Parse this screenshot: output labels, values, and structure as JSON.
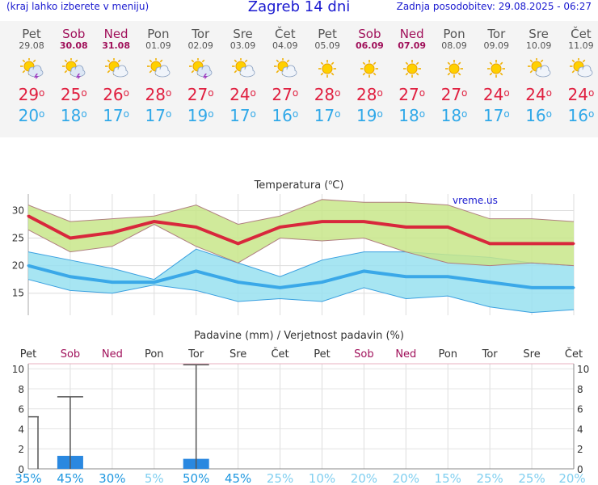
{
  "header": {
    "left": "(kraj lahko izberete v meniju)",
    "title": "Zagreb 14 dni",
    "right": "Zadnja posodobitev: 29.08.2025 - 06:27"
  },
  "colors": {
    "max": "#d8283c",
    "min": "#3aa8e8",
    "max_band": "#c8e68a",
    "min_band": "#98e0f0",
    "weekend": "#a0105a",
    "bar": "#2a88e0",
    "prob": "#38b8e8"
  },
  "days": [
    {
      "name": "Pet",
      "date": "29.08",
      "weekend": false,
      "icon": "sun-cloud-storm-icon",
      "max": "29",
      "min": "20"
    },
    {
      "name": "Sob",
      "date": "30.08",
      "weekend": true,
      "icon": "sun-cloud-storm-icon",
      "max": "25",
      "min": "18"
    },
    {
      "name": "Ned",
      "date": "31.08",
      "weekend": true,
      "icon": "sun-cloud-icon",
      "max": "26",
      "min": "17"
    },
    {
      "name": "Pon",
      "date": "01.09",
      "weekend": false,
      "icon": "sun-cloud-icon",
      "max": "28",
      "min": "17"
    },
    {
      "name": "Tor",
      "date": "02.09",
      "weekend": false,
      "icon": "sun-cloud-storm-icon",
      "max": "27",
      "min": "19"
    },
    {
      "name": "Sre",
      "date": "03.09",
      "weekend": false,
      "icon": "sun-cloud-icon",
      "max": "24",
      "min": "17"
    },
    {
      "name": "Čet",
      "date": "04.09",
      "weekend": false,
      "icon": "sun-cloud-icon",
      "max": "27",
      "min": "16"
    },
    {
      "name": "Pet",
      "date": "05.09",
      "weekend": false,
      "icon": "sun-icon",
      "max": "28",
      "min": "17"
    },
    {
      "name": "Sob",
      "date": "06.09",
      "weekend": true,
      "icon": "sun-icon",
      "max": "28",
      "min": "19"
    },
    {
      "name": "Ned",
      "date": "07.09",
      "weekend": true,
      "icon": "sun-icon",
      "max": "27",
      "min": "18"
    },
    {
      "name": "Pon",
      "date": "08.09",
      "weekend": false,
      "icon": "sun-icon",
      "max": "27",
      "min": "18"
    },
    {
      "name": "Tor",
      "date": "09.09",
      "weekend": false,
      "icon": "sun-icon",
      "max": "24",
      "min": "17"
    },
    {
      "name": "Sre",
      "date": "10.09",
      "weekend": false,
      "icon": "sun-cloud-icon",
      "max": "24",
      "min": "16"
    },
    {
      "name": "Čet",
      "date": "11.09",
      "weekend": false,
      "icon": "sun-cloud-icon",
      "max": "24",
      "min": "16"
    }
  ],
  "chart_data": [
    {
      "type": "line",
      "title": "Temperatura (°C)",
      "title_main": "Temperatura (",
      "title_unit": "C)",
      "watermark": "vreme.us",
      "x": [
        "29.08",
        "30.08",
        "31.08",
        "01.09",
        "02.09",
        "03.09",
        "04.09",
        "05.09",
        "06.09",
        "07.09",
        "08.09",
        "09.09",
        "10.09",
        "11.09"
      ],
      "ylim": [
        11,
        33
      ],
      "yticks": [
        "15",
        "20",
        "25",
        "30"
      ],
      "grid": true,
      "series": [
        {
          "name": "max",
          "values": [
            29,
            25,
            26,
            28,
            27,
            24,
            27,
            28,
            28,
            27,
            27,
            24,
            24,
            24
          ]
        },
        {
          "name": "max_upper",
          "values": [
            31,
            28,
            28.5,
            29,
            31,
            27.5,
            29,
            32,
            31.5,
            31.5,
            31,
            28.5,
            28.5,
            28
          ]
        },
        {
          "name": "max_lower",
          "values": [
            26.5,
            22.5,
            23.5,
            27.5,
            23.5,
            20.5,
            25,
            24.5,
            25,
            22.5,
            20.5,
            20,
            20.5,
            20
          ]
        },
        {
          "name": "min",
          "values": [
            20,
            18,
            17,
            17,
            19,
            17,
            16,
            17,
            19,
            18,
            18,
            17,
            16,
            16
          ]
        },
        {
          "name": "min_upper",
          "values": [
            22.5,
            21,
            19.5,
            17.5,
            23,
            20.5,
            18,
            21,
            22.5,
            22.5,
            22,
            21.5,
            20.5,
            20
          ]
        },
        {
          "name": "min_lower",
          "values": [
            17.5,
            15.5,
            15,
            16.5,
            15.5,
            13.5,
            14,
            13.5,
            16,
            14,
            14.5,
            12.5,
            11.5,
            12
          ]
        }
      ]
    },
    {
      "type": "bar",
      "title": "Padavine (mm) / Verjetnost padavin (%)",
      "categories": [
        "Pet",
        "Sob",
        "Ned",
        "Pon",
        "Tor",
        "Sre",
        "Čet",
        "Pet",
        "Sob",
        "Ned",
        "Pon",
        "Tor",
        "Sre",
        "Čet"
      ],
      "ylim": [
        0,
        10.5
      ],
      "yticks": [
        "0",
        "2",
        "4",
        "6",
        "8",
        "10"
      ],
      "values": [
        0,
        1.3,
        0,
        0,
        1.0,
        0,
        0,
        0,
        0,
        0,
        0,
        0,
        0,
        0
      ],
      "error_high": [
        5.2,
        7.2,
        0,
        0,
        10.4,
        0,
        0,
        0,
        0,
        0,
        0,
        0,
        0,
        0
      ],
      "probabilities": [
        "35%",
        "45%",
        "30%",
        "5%",
        "50%",
        "45%",
        "25%",
        "10%",
        "20%",
        "20%",
        "15%",
        "25%",
        "25%",
        "20%"
      ]
    }
  ]
}
